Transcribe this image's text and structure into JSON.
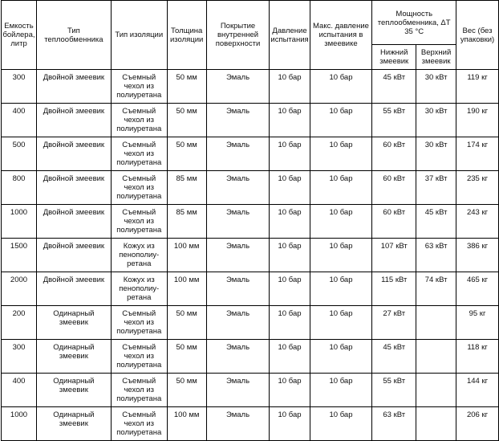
{
  "headers": {
    "capacity": "Емкость бойлера, литр",
    "exchanger_type": "Тип теплообменника",
    "insulation_type": "Тип изоляции",
    "insulation_thickness": "Толщина изоляции",
    "coating": "Покрытие внутренней поверхности",
    "test_pressure": "Давление испытания",
    "max_coil_pressure": "Макс. давление испытания в змеевике",
    "power": "Мощность теплообменника, ΔT 35 °C",
    "power_lower": "Нижний змеевик",
    "power_upper": "Верхний змеевик",
    "weight": "Вес (без упаковки)"
  },
  "rows": [
    {
      "capacity": "300",
      "type": "Двойной змеевик",
      "insulation": "Съемный чехол из полиуретана",
      "thickness": "50 мм",
      "coating": "Эмаль",
      "pressure": "10 бар",
      "max_pressure": "10 бар",
      "lower": "45 кВт",
      "upper": "30 кВт",
      "weight": "119 кг"
    },
    {
      "capacity": "400",
      "type": "Двойной змеевик",
      "insulation": "Съемный чехол из полиуретана",
      "thickness": "50 мм",
      "coating": "Эмаль",
      "pressure": "10 бар",
      "max_pressure": "10 бар",
      "lower": "55 кВт",
      "upper": "30 кВт",
      "weight": "190 кг"
    },
    {
      "capacity": "500",
      "type": "Двойной змеевик",
      "insulation": "Съемный чехол из полиуретана",
      "thickness": "50 мм",
      "coating": "Эмаль",
      "pressure": "10 бар",
      "max_pressure": "10 бар",
      "lower": "60 кВт",
      "upper": "30 кВт",
      "weight": "174 кг"
    },
    {
      "capacity": "800",
      "type": "Двойной змеевик",
      "insulation": "Съемный чехол из полиуретана",
      "thickness": "85 мм",
      "coating": "Эмаль",
      "pressure": "10 бар",
      "max_pressure": "10 бар",
      "lower": "60 кВт",
      "upper": "37 кВт",
      "weight": "235 кг"
    },
    {
      "capacity": "1000",
      "type": "Двойной змеевик",
      "insulation": "Съемный чехол из полиуретана",
      "thickness": "85 мм",
      "coating": "Эмаль",
      "pressure": "10 бар",
      "max_pressure": "10 бар",
      "lower": "60 кВт",
      "upper": "45 кВт",
      "weight": "243 кг"
    },
    {
      "capacity": "1500",
      "type": "Двойной змеевик",
      "insulation": "Кожух из пенополиу-ретана",
      "thickness": "100 мм",
      "coating": "Эмаль",
      "pressure": "10 бар",
      "max_pressure": "10 бар",
      "lower": "107 кВт",
      "upper": "63 кВт",
      "weight": "386 кг"
    },
    {
      "capacity": "2000",
      "type": "Двойной змеевик",
      "insulation": "Кожух из пенополиу-ретана",
      "thickness": "100 мм",
      "coating": "Эмаль",
      "pressure": "10 бар",
      "max_pressure": "10 бар",
      "lower": "115 кВт",
      "upper": "74 кВт",
      "weight": "465 кг"
    },
    {
      "capacity": "200",
      "type": "Одинарный змеевик",
      "insulation": "Съемный чехол из полиуретана",
      "thickness": "50 мм",
      "coating": "Эмаль",
      "pressure": "10 бар",
      "max_pressure": "10 бар",
      "lower": "27 кВт",
      "upper": "",
      "weight": "95 кг"
    },
    {
      "capacity": "300",
      "type": "Одинарный змеевик",
      "insulation": "Съемный чехол из полиуретана",
      "thickness": "50 мм",
      "coating": "Эмаль",
      "pressure": "10 бар",
      "max_pressure": "10 бар",
      "lower": "45 кВт",
      "upper": "",
      "weight": "118 кг"
    },
    {
      "capacity": "400",
      "type": "Одинарный змеевик",
      "insulation": "Съемный чехол из полиуретана",
      "thickness": "50 мм",
      "coating": "Эмаль",
      "pressure": "10 бар",
      "max_pressure": "10 бар",
      "lower": "55 кВт",
      "upper": "",
      "weight": "144 кг"
    },
    {
      "capacity": "1000",
      "type": "Одинарный змеевик",
      "insulation": "Съемный чехол из полиуретана",
      "thickness": "100 мм",
      "coating": "Эмаль",
      "pressure": "10 бар",
      "max_pressure": "10 бар",
      "lower": "63 кВт",
      "upper": "",
      "weight": "206 кг"
    }
  ]
}
